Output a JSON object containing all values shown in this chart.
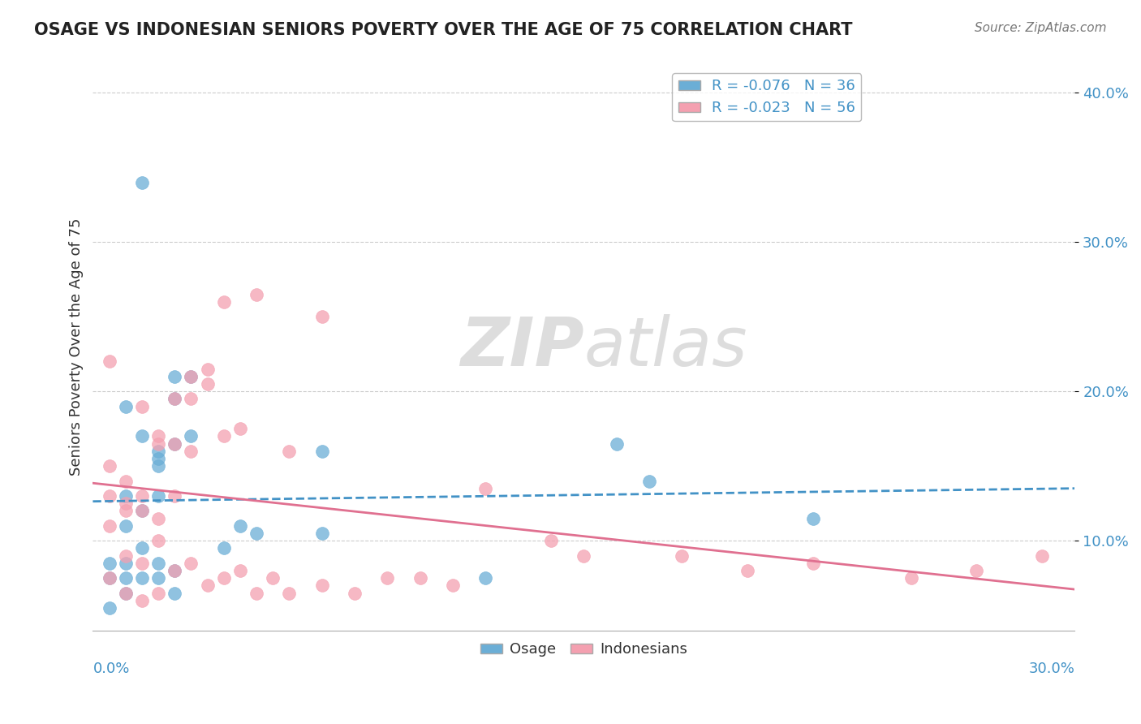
{
  "title": "OSAGE VS INDONESIAN SENIORS POVERTY OVER THE AGE OF 75 CORRELATION CHART",
  "source": "Source: ZipAtlas.com",
  "ylabel": "Seniors Poverty Over the Age of 75",
  "y_ticks": [
    10.0,
    20.0,
    30.0,
    40.0
  ],
  "x_range": [
    0.0,
    0.3
  ],
  "y_range": [
    0.04,
    0.42
  ],
  "legend_blue": "R = -0.076   N = 36",
  "legend_pink": "R = -0.023   N = 56",
  "watermark_zip": "ZIP",
  "watermark_atlas": "atlas",
  "blue_color": "#6baed6",
  "pink_color": "#f4a0b0",
  "blue_line_color": "#4292c6",
  "pink_line_color": "#e07090",
  "osage_x": [
    0.01,
    0.02,
    0.005,
    0.015,
    0.01,
    0.02,
    0.025,
    0.03,
    0.01,
    0.015,
    0.02,
    0.025,
    0.015,
    0.01,
    0.02,
    0.03,
    0.025,
    0.05,
    0.04,
    0.045,
    0.005,
    0.01,
    0.015,
    0.02,
    0.025,
    0.16,
    0.17,
    0.22,
    0.07,
    0.12,
    0.07,
    0.005,
    0.01,
    0.015,
    0.02,
    0.025
  ],
  "osage_y": [
    0.13,
    0.13,
    0.075,
    0.12,
    0.11,
    0.15,
    0.21,
    0.21,
    0.19,
    0.095,
    0.16,
    0.195,
    0.17,
    0.085,
    0.155,
    0.17,
    0.165,
    0.105,
    0.095,
    0.11,
    0.085,
    0.075,
    0.34,
    0.075,
    0.08,
    0.165,
    0.14,
    0.115,
    0.105,
    0.075,
    0.16,
    0.055,
    0.065,
    0.075,
    0.085,
    0.065
  ],
  "indo_x": [
    0.005,
    0.01,
    0.015,
    0.02,
    0.025,
    0.03,
    0.005,
    0.01,
    0.015,
    0.02,
    0.025,
    0.03,
    0.035,
    0.04,
    0.005,
    0.01,
    0.015,
    0.02,
    0.025,
    0.03,
    0.035,
    0.04,
    0.045,
    0.05,
    0.06,
    0.07,
    0.005,
    0.01,
    0.015,
    0.02,
    0.025,
    0.03,
    0.035,
    0.04,
    0.045,
    0.05,
    0.055,
    0.06,
    0.07,
    0.08,
    0.09,
    0.1,
    0.11,
    0.12,
    0.14,
    0.15,
    0.18,
    0.2,
    0.22,
    0.25,
    0.27,
    0.29,
    0.005,
    0.01,
    0.015,
    0.02
  ],
  "indo_y": [
    0.13,
    0.125,
    0.12,
    0.115,
    0.13,
    0.16,
    0.15,
    0.14,
    0.19,
    0.17,
    0.165,
    0.21,
    0.215,
    0.26,
    0.22,
    0.12,
    0.13,
    0.165,
    0.195,
    0.195,
    0.205,
    0.17,
    0.175,
    0.265,
    0.16,
    0.25,
    0.11,
    0.09,
    0.085,
    0.1,
    0.08,
    0.085,
    0.07,
    0.075,
    0.08,
    0.065,
    0.075,
    0.065,
    0.07,
    0.065,
    0.075,
    0.075,
    0.07,
    0.135,
    0.1,
    0.09,
    0.09,
    0.08,
    0.085,
    0.075,
    0.08,
    0.09,
    0.075,
    0.065,
    0.06,
    0.065
  ]
}
